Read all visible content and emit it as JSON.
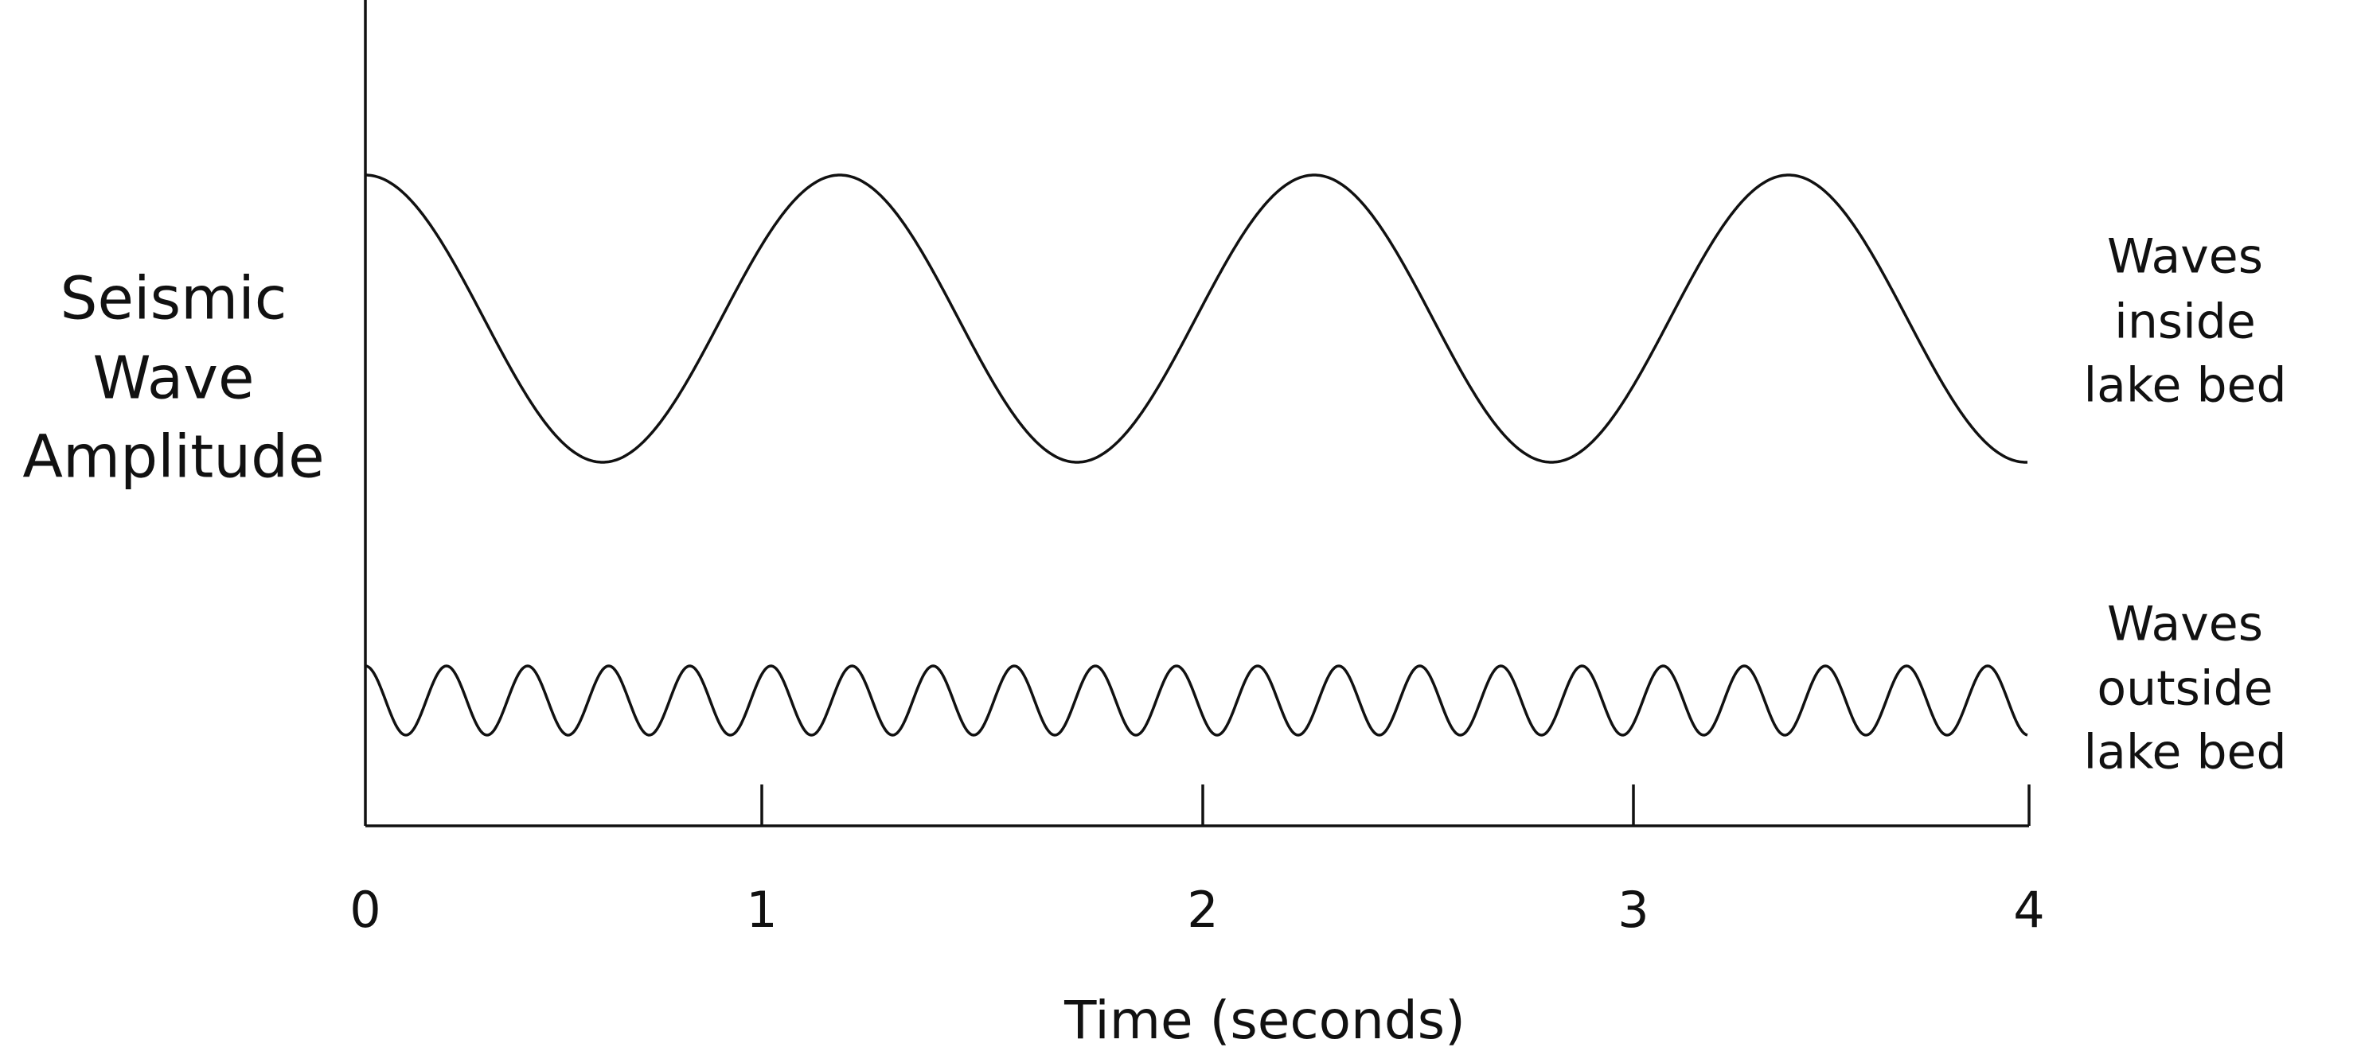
{
  "axes": {
    "y_label": [
      "Seismic",
      "Wave",
      "Amplitude"
    ],
    "x_label": "Time (seconds)",
    "x_ticks": [
      "0",
      "1",
      "2",
      "3",
      "4"
    ]
  },
  "waves": [
    {
      "label": [
        "Waves",
        "inside",
        "lake bed"
      ]
    },
    {
      "label": [
        "Waves",
        "outside",
        "lake bed"
      ]
    }
  ]
}
